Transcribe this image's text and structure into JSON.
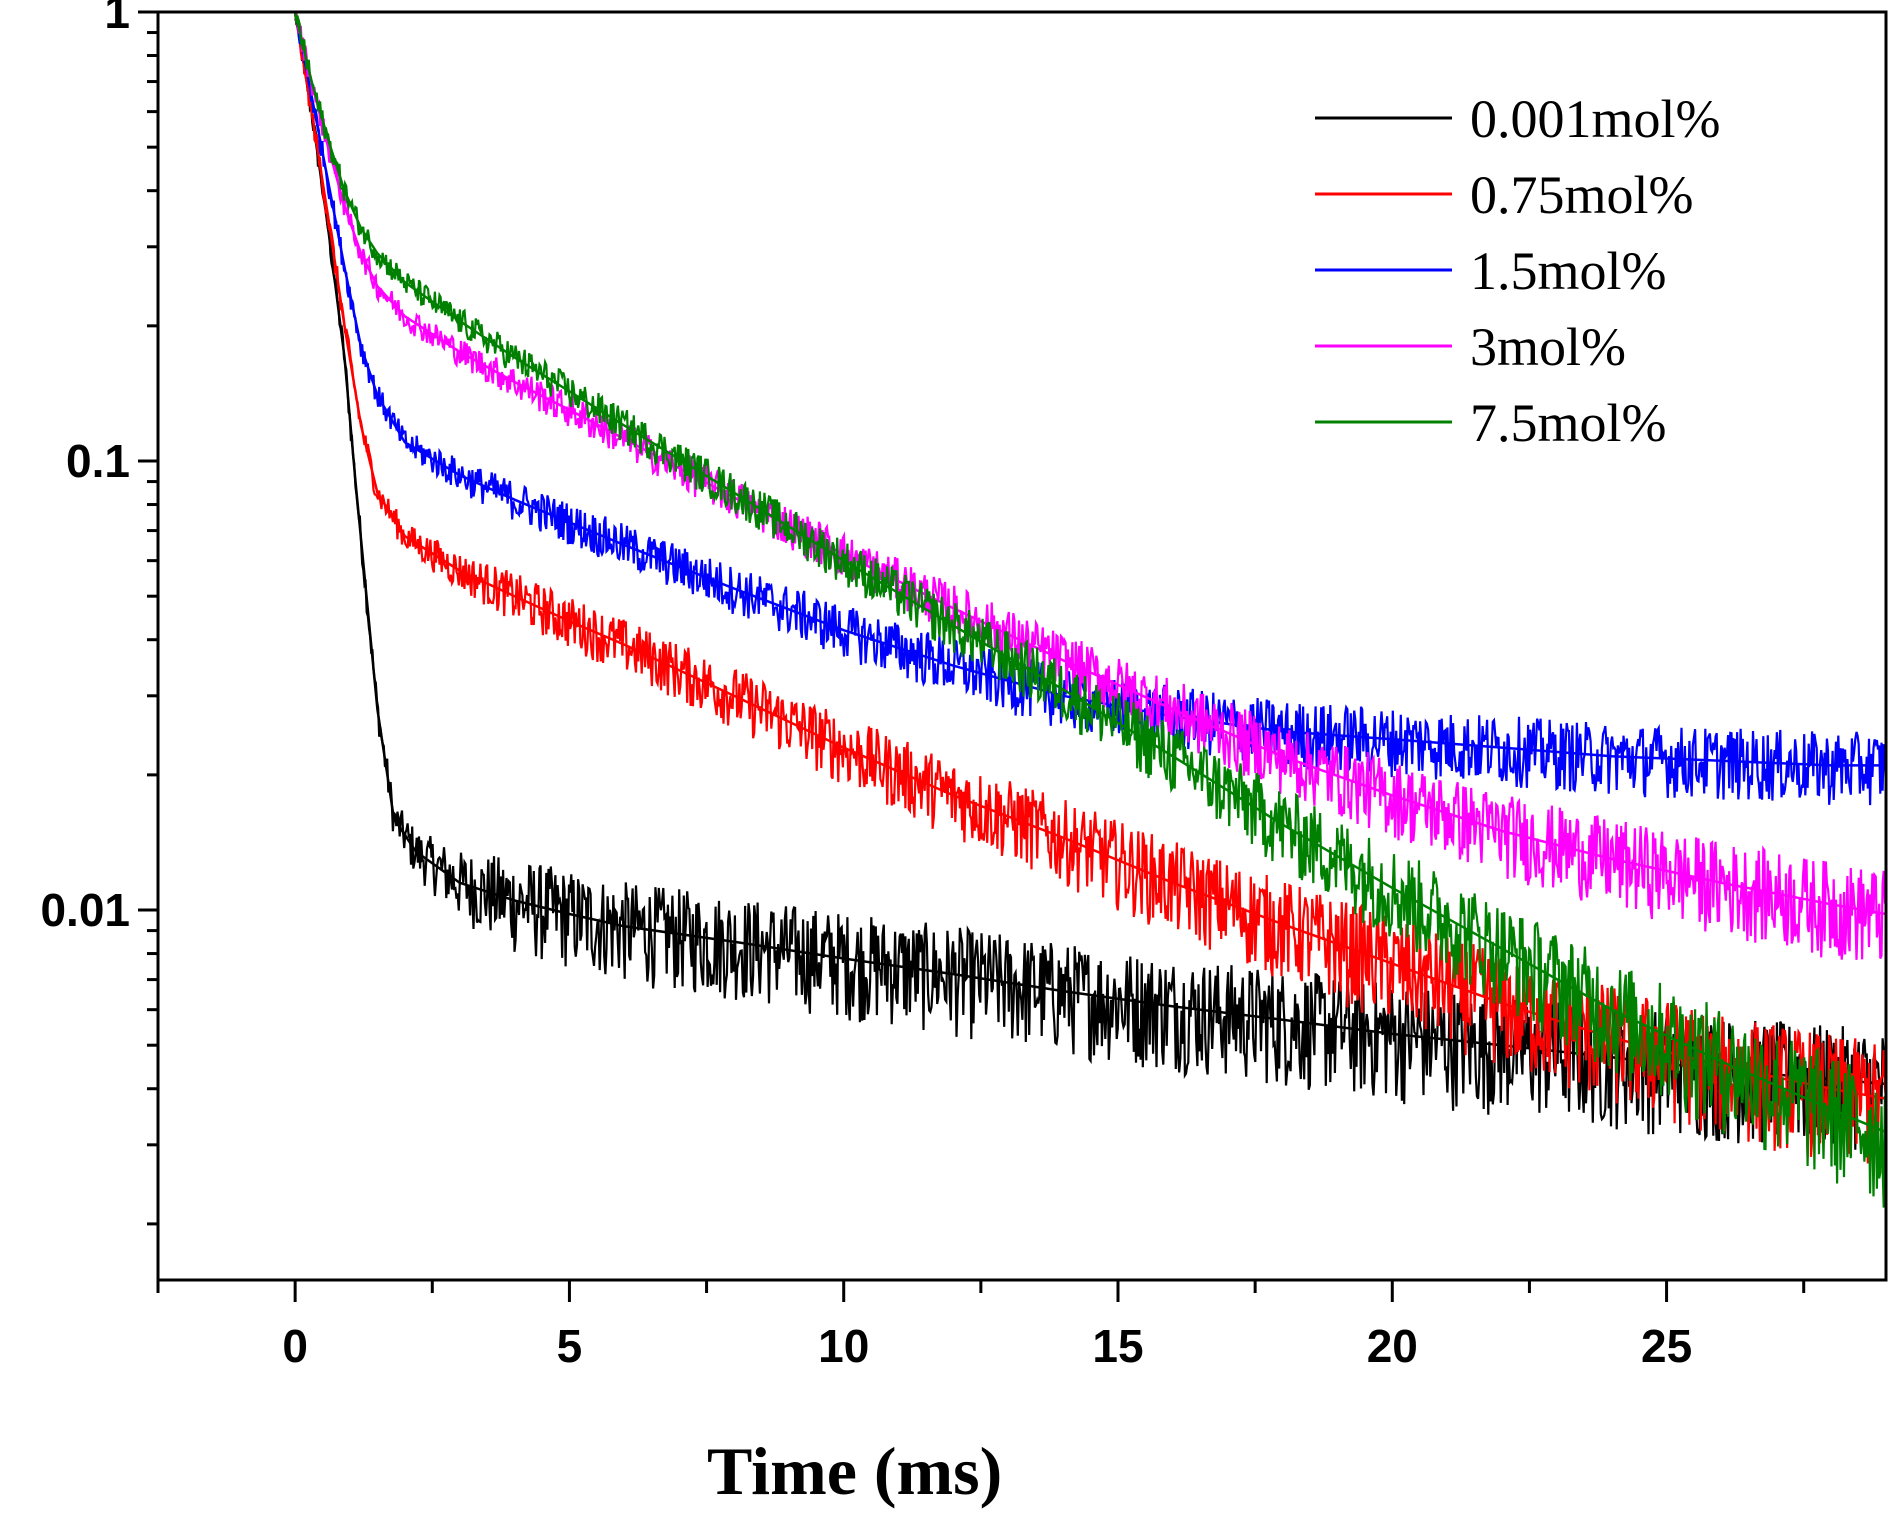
{
  "chart_data": {
    "type": "line",
    "title": "",
    "xlabel": "Time (ms)",
    "ylabel": "",
    "x_range": [
      -2.5,
      29.0
    ],
    "y_range": [
      0.0015,
      1
    ],
    "y_scale": "log",
    "x_ticks": [
      0,
      5,
      10,
      15,
      20,
      25
    ],
    "x_tick_labels": [
      "0",
      "5",
      "10",
      "15",
      "20",
      "25"
    ],
    "y_ticks": [
      0.01,
      0.1,
      1
    ],
    "y_tick_labels": [
      "0.01",
      "0.1",
      "1"
    ],
    "grid": false,
    "legend_position": "top-right",
    "series": [
      {
        "name": "0.001mol%",
        "color": "#000000",
        "x": [
          0,
          0.3,
          0.6,
          0.9,
          1.1,
          1.3,
          1.5,
          1.8,
          2.2,
          3,
          4,
          5,
          6,
          8,
          10,
          12,
          14,
          16,
          18,
          20,
          22,
          24,
          26,
          28,
          29
        ],
        "y": [
          1.0,
          0.6,
          0.33,
          0.17,
          0.09,
          0.05,
          0.028,
          0.016,
          0.0135,
          0.0115,
          0.0105,
          0.0098,
          0.0092,
          0.0085,
          0.0078,
          0.0072,
          0.0066,
          0.0061,
          0.0057,
          0.0053,
          0.005,
          0.0047,
          0.0044,
          0.0042,
          0.0041
        ]
      },
      {
        "name": "0.75mol%",
        "color": "#ff0000",
        "x": [
          0,
          0.3,
          0.6,
          0.9,
          1.2,
          1.5,
          2,
          3,
          4,
          5,
          6,
          8,
          10,
          12,
          14,
          16,
          18,
          20,
          22,
          24,
          26,
          28,
          29
        ],
        "y": [
          1.0,
          0.6,
          0.35,
          0.2,
          0.12,
          0.085,
          0.068,
          0.057,
          0.05,
          0.044,
          0.039,
          0.03,
          0.023,
          0.018,
          0.0145,
          0.0115,
          0.0093,
          0.0076,
          0.0062,
          0.0052,
          0.0045,
          0.004,
          0.0038
        ]
      },
      {
        "name": "1.5mol%",
        "color": "#0000ff",
        "x": [
          0,
          0.3,
          0.6,
          0.9,
          1.2,
          1.5,
          2,
          3,
          4,
          5,
          6,
          8,
          10,
          12,
          14,
          16,
          18,
          20,
          22,
          24,
          26,
          28,
          29
        ],
        "y": [
          1.0,
          0.65,
          0.42,
          0.27,
          0.18,
          0.14,
          0.11,
          0.093,
          0.082,
          0.073,
          0.065,
          0.052,
          0.042,
          0.035,
          0.03,
          0.027,
          0.025,
          0.024,
          0.023,
          0.022,
          0.0215,
          0.021,
          0.021
        ]
      },
      {
        "name": "3mol%",
        "color": "#ff00ff",
        "x": [
          0,
          0.3,
          0.6,
          0.9,
          1.2,
          1.5,
          2,
          3,
          4,
          5,
          6,
          8,
          10,
          12,
          14,
          16,
          18,
          20,
          22,
          24,
          26,
          28,
          29
        ],
        "y": [
          1.0,
          0.7,
          0.5,
          0.37,
          0.29,
          0.245,
          0.21,
          0.175,
          0.15,
          0.13,
          0.112,
          0.083,
          0.062,
          0.047,
          0.036,
          0.028,
          0.022,
          0.018,
          0.015,
          0.013,
          0.0115,
          0.0103,
          0.0098
        ]
      },
      {
        "name": "7.5mol%",
        "color": "#008000",
        "x": [
          0,
          0.3,
          0.6,
          0.9,
          1.2,
          1.5,
          2,
          3,
          4,
          5,
          6,
          8,
          10,
          12,
          14,
          16,
          18,
          20,
          22,
          24,
          26,
          28,
          29
        ],
        "y": [
          1.0,
          0.7,
          0.52,
          0.4,
          0.33,
          0.29,
          0.25,
          0.205,
          0.17,
          0.143,
          0.12,
          0.085,
          0.06,
          0.043,
          0.031,
          0.022,
          0.0155,
          0.0112,
          0.0082,
          0.006,
          0.0046,
          0.0036,
          0.0032
        ]
      }
    ]
  }
}
